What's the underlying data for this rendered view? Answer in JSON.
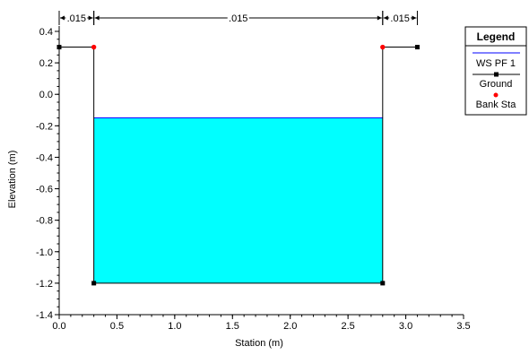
{
  "chart_data": {
    "type": "area",
    "title": "",
    "xlabel": "Station (m)",
    "ylabel": "Elevation (m)",
    "xlim": [
      0.0,
      3.5
    ],
    "ylim": [
      -1.4,
      0.4
    ],
    "xticks": [
      "0.0",
      "0.5",
      "1.0",
      "1.5",
      "2.0",
      "2.5",
      "3.0",
      "3.5"
    ],
    "yticks": [
      "0.4",
      "0.2",
      "0.0",
      "-0.2",
      "-0.4",
      "-0.6",
      "-0.8",
      "-1.0",
      "-1.2",
      "-1.4"
    ],
    "ground": {
      "x": [
        0.0,
        0.3,
        0.3,
        2.8,
        2.8,
        3.1
      ],
      "y": [
        0.3,
        0.3,
        -1.2,
        -1.2,
        0.3,
        0.3
      ]
    },
    "bank_stations": {
      "x": [
        0.3,
        2.8
      ],
      "y": [
        0.3,
        0.3
      ]
    },
    "water_surface": {
      "name": "WS PF 1",
      "elevation": -0.15,
      "x_start": 0.3,
      "x_end": 2.8
    },
    "mannings_n": [
      {
        "label": ".015",
        "x_start": 0.0,
        "x_end": 0.3
      },
      {
        "label": ".015",
        "x_start": 0.3,
        "x_end": 2.8
      },
      {
        "label": ".015",
        "x_start": 2.8,
        "x_end": 3.1
      }
    ],
    "legend": {
      "title": "Legend",
      "placement": "right",
      "items": [
        {
          "label": "WS PF 1",
          "kind": "line",
          "color": "#0000ff"
        },
        {
          "label": "Ground",
          "kind": "line-square",
          "color": "#000000"
        },
        {
          "label": "Bank Sta",
          "kind": "dot",
          "color": "#ff0000"
        }
      ]
    },
    "colors": {
      "water_fill": "#00ffff",
      "water_line": "#0000ff",
      "ground": "#000000",
      "bank": "#ff0000"
    }
  }
}
